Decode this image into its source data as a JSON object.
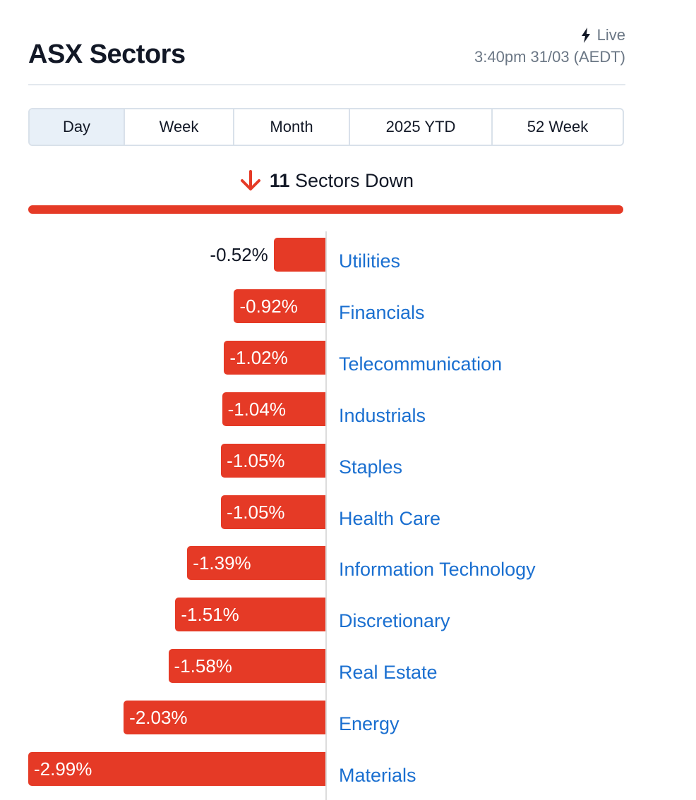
{
  "header": {
    "title": "ASX Sectors",
    "live_label": "Live",
    "timestamp": "3:40pm 31/03 (AEDT)"
  },
  "tabs": [
    {
      "label": "Day",
      "active": true
    },
    {
      "label": "Week",
      "active": false
    },
    {
      "label": "Month",
      "active": false
    },
    {
      "label": "2025 YTD",
      "active": false
    },
    {
      "label": "52 Week",
      "active": false
    }
  ],
  "summary": {
    "count": "11",
    "label": "Sectors Down",
    "icon": "arrow-down-icon",
    "color": "#e53a26"
  },
  "colors": {
    "bar": "#e53a26",
    "link": "#1a6fd0",
    "text": "#121826",
    "muted": "#6b7785"
  },
  "chart_data": {
    "type": "bar",
    "orientation": "horizontal",
    "categories": [
      "Utilities",
      "Financials",
      "Telecommunication",
      "Industrials",
      "Staples",
      "Health Care",
      "Information Technology",
      "Discretionary",
      "Real Estate",
      "Energy",
      "Materials"
    ],
    "values": [
      -0.52,
      -0.92,
      -1.02,
      -1.04,
      -1.05,
      -1.05,
      -1.39,
      -1.51,
      -1.58,
      -2.03,
      -2.99
    ],
    "labels": [
      "-0.52%",
      "-0.92%",
      "-1.02%",
      "-1.04%",
      "-1.05%",
      "-1.05%",
      "-1.39%",
      "-1.51%",
      "-1.58%",
      "-2.03%",
      "-2.99%"
    ]
  }
}
